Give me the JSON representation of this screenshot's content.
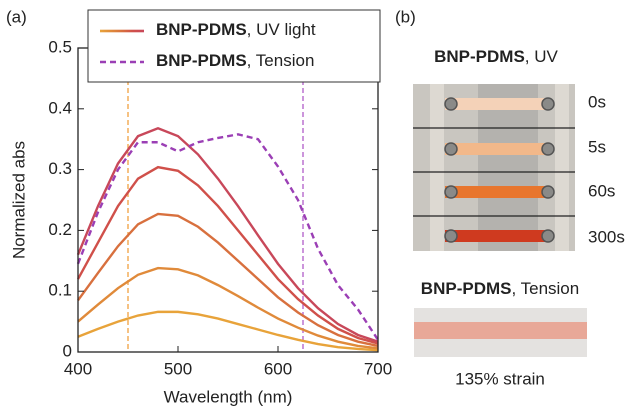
{
  "panel_a": {
    "label": "(a)"
  },
  "panel_b": {
    "label": "(b)",
    "uv_title": "BNP-PDMS, UV",
    "times": [
      "0s",
      "5s",
      "60s",
      "300s"
    ],
    "tension_title": "BNP-PDMS, Tension",
    "strain_label": "135% strain"
  },
  "chart_data": {
    "type": "line",
    "x_label": "Wavelength (nm)",
    "y_label": "Normalized abs",
    "x": [
      400,
      420,
      440,
      460,
      480,
      500,
      520,
      540,
      560,
      580,
      600,
      620,
      640,
      660,
      680,
      700
    ],
    "series": [
      {
        "name": "BNP-PDMS, UV light",
        "lines": [
          {
            "color": "#e8a33a",
            "values": [
              0.025,
              0.038,
              0.05,
              0.06,
              0.066,
              0.066,
              0.062,
              0.055,
              0.046,
              0.037,
              0.028,
              0.02,
              0.013,
              0.008,
              0.005,
              0.003
            ]
          },
          {
            "color": "#e08a3a",
            "values": [
              0.05,
              0.078,
              0.105,
              0.127,
              0.138,
              0.136,
              0.126,
              0.11,
              0.092,
              0.073,
              0.055,
              0.04,
              0.027,
              0.017,
              0.01,
              0.006
            ]
          },
          {
            "color": "#d8703e",
            "values": [
              0.085,
              0.13,
              0.174,
              0.21,
              0.227,
              0.224,
              0.206,
              0.18,
              0.15,
              0.12,
              0.09,
              0.065,
              0.044,
              0.028,
              0.017,
              0.01
            ]
          },
          {
            "color": "#d0504a",
            "values": [
              0.12,
              0.18,
              0.24,
              0.285,
              0.304,
              0.298,
              0.274,
              0.24,
              0.2,
              0.16,
              0.12,
              0.087,
              0.06,
              0.038,
              0.023,
              0.014
            ]
          },
          {
            "color": "#c8485a",
            "values": [
              0.16,
              0.24,
              0.31,
              0.355,
              0.368,
              0.355,
              0.325,
              0.285,
              0.24,
              0.192,
              0.145,
              0.105,
              0.072,
              0.046,
              0.028,
              0.017
            ]
          }
        ]
      },
      {
        "name": "BNP-PDMS, Tension",
        "color": "#9b3fb5",
        "dashed": true,
        "values": [
          0.145,
          0.23,
          0.3,
          0.345,
          0.345,
          0.33,
          0.345,
          0.352,
          0.358,
          0.35,
          0.305,
          0.25,
          0.17,
          0.11,
          0.07,
          0.02
        ]
      }
    ],
    "vlines": [
      {
        "x": 450,
        "color": "#f0a040"
      },
      {
        "x": 625,
        "color": "#b05cc8"
      }
    ],
    "xlim": [
      400,
      700
    ],
    "xticks": [
      400,
      500,
      600,
      700
    ],
    "ylim": [
      0,
      0.5
    ],
    "yticks": [
      0,
      0.1,
      0.2,
      0.3,
      0.4,
      0.5
    ]
  }
}
